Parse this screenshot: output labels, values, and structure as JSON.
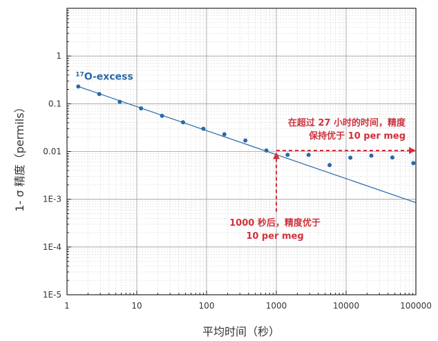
{
  "chart_data": {
    "type": "scatter",
    "xlabel": "平均时间（秒）",
    "ylabel": "1- σ 精度（permils）",
    "xscale": "log",
    "yscale": "log",
    "xlim": [
      1,
      100000
    ],
    "ylim": [
      1e-05,
      10
    ],
    "grid": true,
    "x_ticks": [
      "1",
      "10",
      "100",
      "1000",
      "10000",
      "100000"
    ],
    "y_ticks": [
      "1E-5",
      "1E-4",
      "1E-3",
      "0.01",
      "0.1",
      "1"
    ],
    "series": [
      {
        "name_super": "17",
        "name_main": "O-excess",
        "color": "#2a68a6",
        "points": [
          {
            "x": 1.45,
            "y": 0.23
          },
          {
            "x": 2.9,
            "y": 0.16
          },
          {
            "x": 5.7,
            "y": 0.11
          },
          {
            "x": 11.5,
            "y": 0.08
          },
          {
            "x": 23,
            "y": 0.056
          },
          {
            "x": 46,
            "y": 0.041
          },
          {
            "x": 90,
            "y": 0.03
          },
          {
            "x": 180,
            "y": 0.023
          },
          {
            "x": 360,
            "y": 0.017
          },
          {
            "x": 720,
            "y": 0.0105
          },
          {
            "x": 1450,
            "y": 0.0085
          },
          {
            "x": 2900,
            "y": 0.0085
          },
          {
            "x": 5800,
            "y": 0.0052
          },
          {
            "x": 11500,
            "y": 0.0074
          },
          {
            "x": 23000,
            "y": 0.0082
          },
          {
            "x": 46000,
            "y": 0.0075
          },
          {
            "x": 92000,
            "y": 0.0057
          }
        ],
        "trend": {
          "x": [
            1.45,
            100000
          ],
          "y": [
            0.23,
            0.00085
          ]
        }
      }
    ],
    "annotations": [
      {
        "lines": [
          "在超过 27 小时的时间，精度",
          "保持优于 10 per meg"
        ],
        "color": "#d0313b"
      },
      {
        "lines": [
          "1000 秒后，精度优于",
          "10 per meg"
        ],
        "color": "#d0313b"
      }
    ],
    "arrows": {
      "vertical": {
        "x": 1000,
        "y_from": 0.00055,
        "y_to": 0.0085
      },
      "horizontal": {
        "y": 0.0105,
        "x_from": 1000,
        "x_to": 100000
      }
    }
  }
}
